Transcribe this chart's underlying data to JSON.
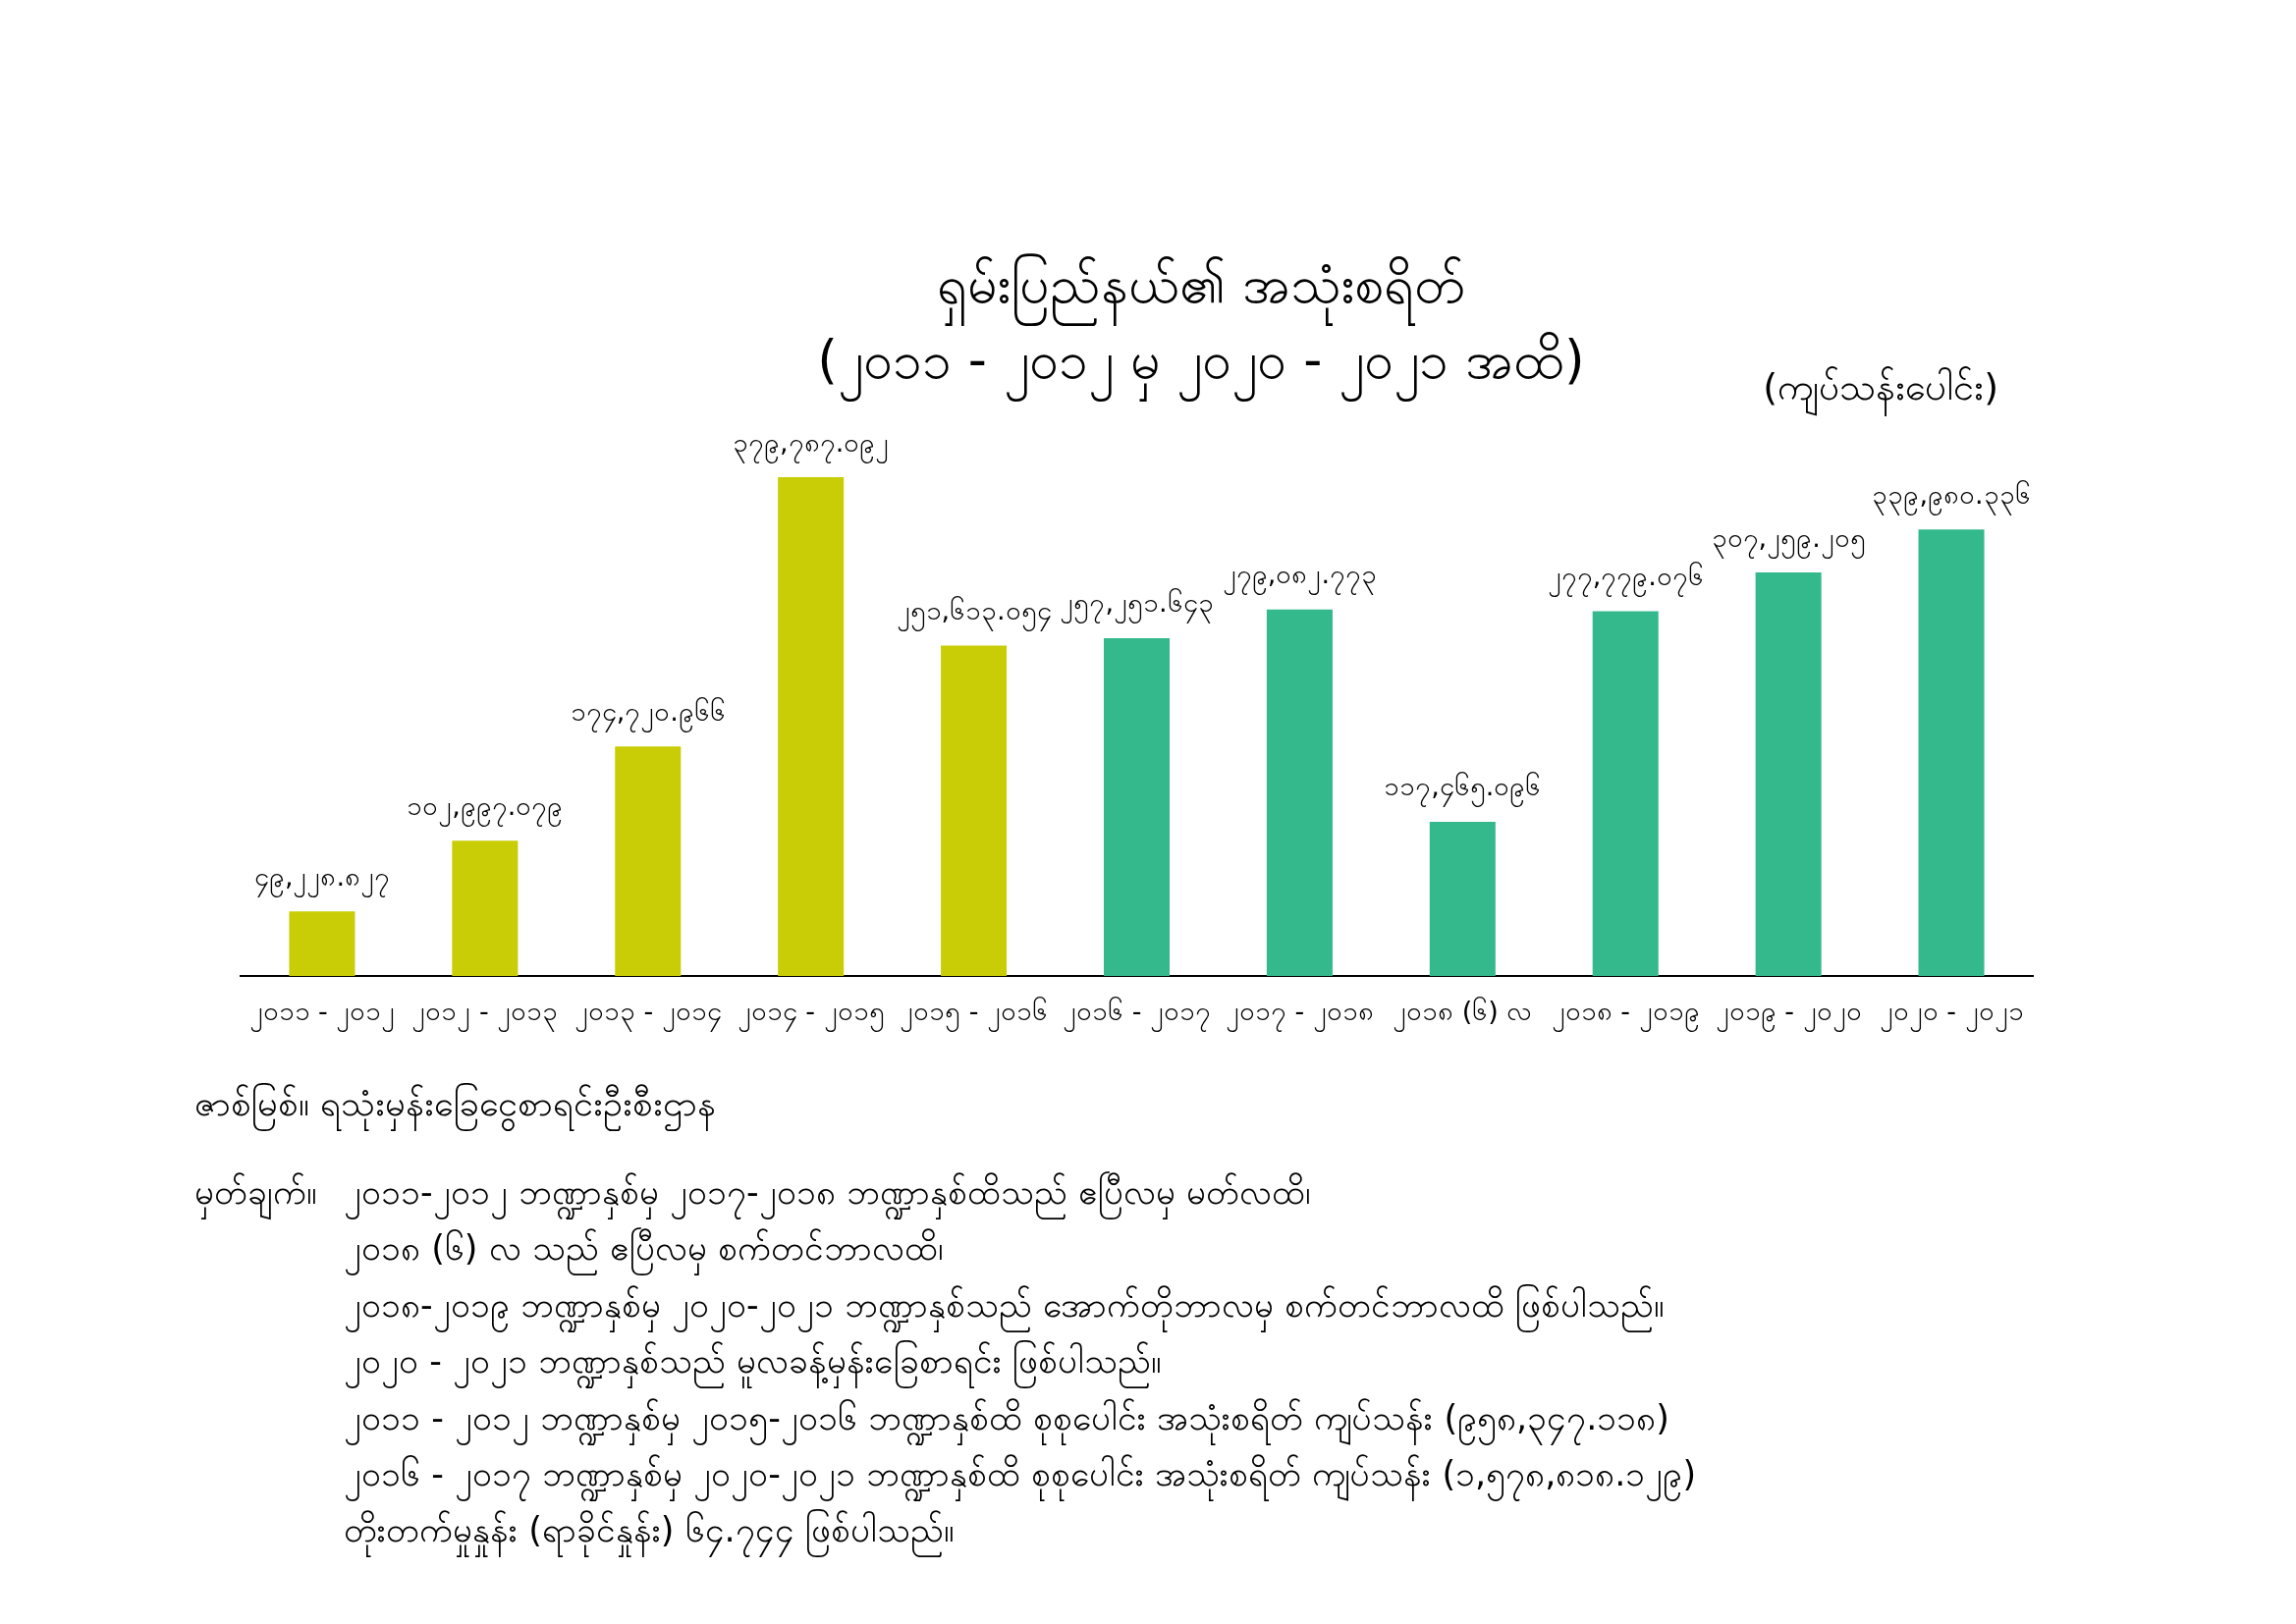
{
  "chart_data": {
    "type": "bar",
    "title": "ရှမ်းပြည်နယ်၏ အသုံးစရိတ်",
    "subtitle": "(၂၀၁၁ - ၂၀၁၂ မှ ၂၀၂၀ - ၂၀၂၁ အထိ)",
    "ylabel": "(ကျပ်သန်းပေါင်း)",
    "categories": [
      "၂၀၁၁ - ၂၀၁၂",
      "၂၀၁၂ - ၂၀၁၃",
      "၂၀၁၃ - ၂၀၁၄",
      "၂၀၁၄ - ၂၀၁၅",
      "၂၀၁၅ - ၂၀၁၆",
      "၂၀၁၆ - ၂၀၁၇",
      "၂၀၁၇ - ၂၀၁၈",
      "၂၀၁၈ (၆) လ",
      "၂၀၁၈ - ၂၀၁၉",
      "၂၀၁၉ - ၂၀၂၀",
      "၂၀၂၀ - ၂၀၂၁"
    ],
    "values": [
      49228.827,
      102997.079,
      174720.966,
      379787.092,
      251613.054,
      257251.643,
      279082.773,
      117465.096,
      277779.076,
      307259.205,
      339980.336
    ],
    "value_labels": [
      "၄၉,၂၂၈.၈၂၇",
      "၁၀၂,၉၉၇.၀၇၉",
      "၁၇၄,၇၂၀.၉၆၆",
      "၃၇၉,၇၈၇.၀၉၂",
      "၂၅၁,၆၁၃.၀၅၄",
      "၂၅၇,၂၅၁.၆၄၃",
      "၂၇၉,၀၈၂.၇၇၃",
      "၁၁၇,၄၆၅.၀၉၆",
      "၂၇၇,၇၇၉.၀၇၆",
      "၃၀၇,၂၅၉.၂၀၅",
      "၃၃၉,၉၈၀.၃၃၆"
    ],
    "colors": [
      "#c8cd05",
      "#c8cd05",
      "#c8cd05",
      "#c8cd05",
      "#c8cd05",
      "#34b98c",
      "#34b98c",
      "#34b98c",
      "#34b98c",
      "#34b98c",
      "#34b98c"
    ],
    "annotations": [
      "ဇာစ်မြစ်။ ရသုံးမှန်းခြေငွေစာရင်းဦးစီးဌာန",
      "မှတ်ချက်။",
      "၂၀၁၁-၂၀၁၂ ဘဏ္ဍာနှစ်မှ ၂၀၁၇-၂၀၁၈ ဘဏ္ဍာနှစ်ထိသည် ဧပြီလမှ မတ်လထိ၊",
      "၂၀၁၈ (၆) လ သည် ဧပြီလမှ စက်တင်ဘာလထိ၊",
      "၂၀၁၈-၂၀၁၉ ဘဏ္ဍာနှစ်မှ ၂၀၂၀-၂၀၂၁ ဘဏ္ဍာနှစ်သည် အောက်တိုဘာလမှ စက်တင်ဘာလထိ ဖြစ်ပါသည်။",
      "၂၀၂၀ - ၂၀၂၁ ဘဏ္ဍာနှစ်သည် မူလခန့်မှန်းခြေစာရင်း ဖြစ်ပါသည်။",
      "၂၀၁၁ - ၂၀၁၂ ဘဏ္ဍာနှစ်မှ ၂၀၁၅-၂၀၁၆ ဘဏ္ဍာနှစ်ထိ စုစုပေါင်း အသုံးစရိတ် ကျပ်သန်း (၉၅၈,၃၄၇.၁၁၈)",
      "၂၀၁၆ - ၂၀၁၇ ဘဏ္ဍာနှစ်မှ ၂၀၂၀-၂၀၂၁ ဘဏ္ဍာနှစ်ထိ စုစုပေါင်း အသုံးစရိတ် ကျပ်သန်း (၁,၅၇၈,၈၁၈.၁၂၉)",
      "တိုးတက်မှုနှုန်း (ရာခိုင်နှုန်း) ၆၄.၇၄၄ ဖြစ်ပါသည်။"
    ]
  }
}
